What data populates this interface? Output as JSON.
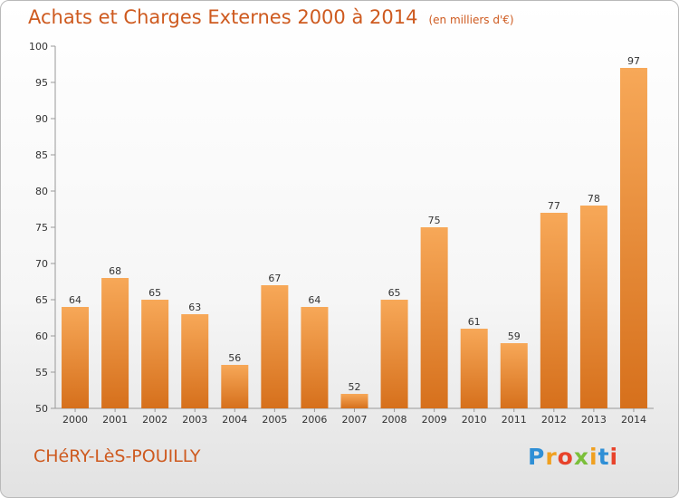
{
  "header": {
    "title": "Achats et Charges Externes 2000 à 2014",
    "subtitle": "(en milliers d'€)"
  },
  "footer": {
    "commune": "CHéRY-LèS-POUILLY",
    "logo_letters": [
      "P",
      "r",
      "o",
      "x",
      "i",
      "t",
      "i"
    ]
  },
  "colors": {
    "bar_light": "#f7a858",
    "bar_dark": "#d6701c",
    "title": "#ce5a1f"
  },
  "chart_data": {
    "type": "bar",
    "title": "Achats et Charges Externes 2000 à 2014",
    "subtitle": "(en milliers d'€)",
    "categories": [
      "2000",
      "2001",
      "2002",
      "2003",
      "2004",
      "2005",
      "2006",
      "2007",
      "2008",
      "2009",
      "2010",
      "2011",
      "2012",
      "2013",
      "2014"
    ],
    "values": [
      64,
      68,
      65,
      63,
      56,
      67,
      64,
      52,
      65,
      75,
      61,
      59,
      77,
      78,
      97
    ],
    "ylim": [
      50,
      100
    ],
    "yticks": [
      50,
      55,
      60,
      65,
      70,
      75,
      80,
      85,
      90,
      95,
      100
    ],
    "grid": false,
    "data_labels": true
  }
}
